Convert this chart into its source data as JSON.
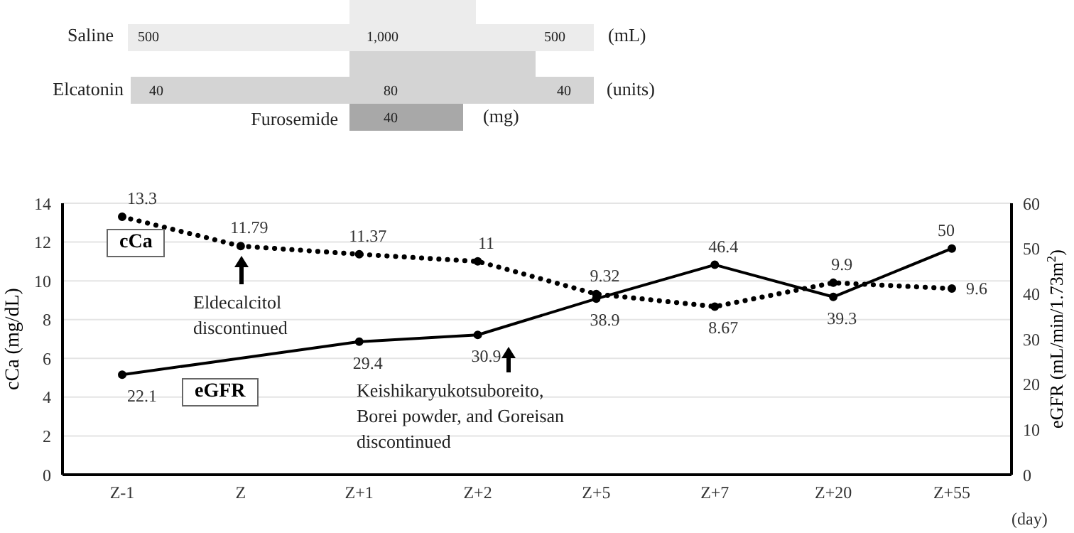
{
  "chart_data": [
    {
      "type": "other",
      "annotations": [
        "Saline",
        "500",
        "1,000",
        "500",
        "(mL)",
        "Elcatonin",
        "40",
        "80",
        "40",
        "(units)",
        "Furosemide",
        "40",
        "(mg)"
      ]
    },
    {
      "type": "line",
      "categories": [
        "Z-1",
        "Z",
        "Z+1",
        "Z+2",
        "Z+5",
        "Z+7",
        "Z+20",
        "Z+55"
      ],
      "series": [
        {
          "name": "cCa",
          "color": "#000000",
          "line_style": "dotted",
          "values": [
            13.3,
            11.79,
            11.37,
            11,
            9.32,
            8.67,
            9.9,
            9.6
          ]
        },
        {
          "name": "eGFR",
          "color": "#000000",
          "line_style": "solid",
          "axis": "y2",
          "values": [
            22.1,
            null,
            29.4,
            30.9,
            38.9,
            46.4,
            39.3,
            50
          ]
        }
      ],
      "xlabel": "(day)",
      "ylabel": "cCa (mg/dL)",
      "y2label": "eGFR (mL/min/1.73m$^{2}$)",
      "ylim": [
        0,
        14
      ],
      "yticks": [
        0,
        2,
        4,
        6,
        8,
        10,
        12,
        14
      ],
      "y2lim": [
        0,
        60
      ],
      "y2ticks": [
        0,
        10,
        20,
        30,
        40,
        50,
        60
      ],
      "grid": "y",
      "legend": false,
      "marker": "circle",
      "data_labels": true,
      "annotations": [
        "Eldecalcitol\ndiscontinued",
        "Keishikaryukotsuboreito,\nBorei powder, and Goreisan\ndiscontinued"
      ]
    }
  ]
}
